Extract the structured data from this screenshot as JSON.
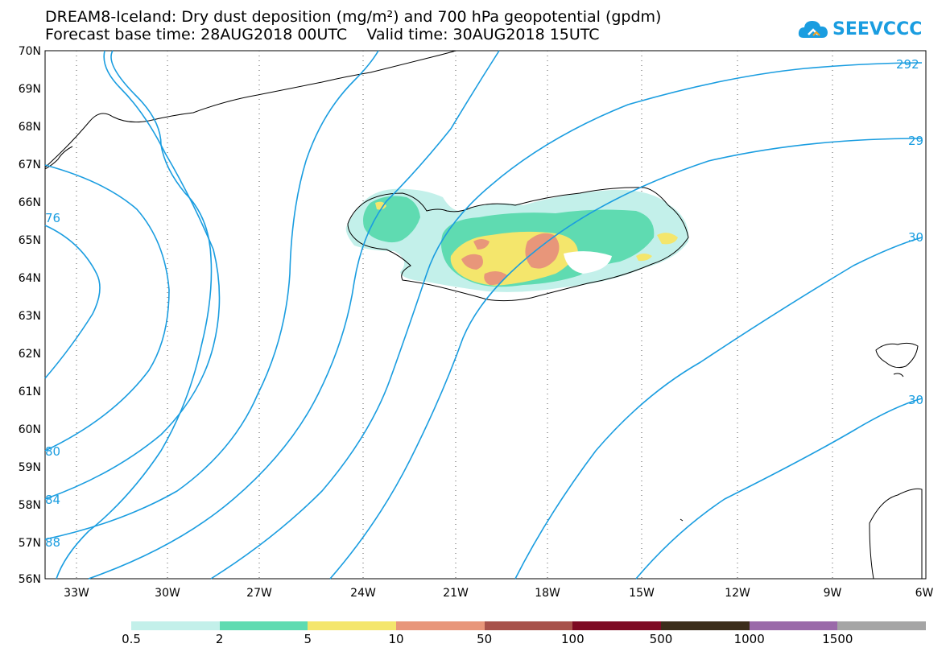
{
  "header": {
    "title_line1": "DREAM8-Iceland: Dry dust deposition (mg/m²) and 700 hPa geopotential (gpdm)",
    "title_line2": "Forecast base time: 28AUG2018 00UTC    Valid time: 30AUG2018 15UTC"
  },
  "logo": {
    "text": "SEEVCCC",
    "color": "#1a9de0"
  },
  "axes": {
    "lat_labels": [
      "70N",
      "69N",
      "68N",
      "67N",
      "66N",
      "65N",
      "64N",
      "63N",
      "62N",
      "61N",
      "60N",
      "59N",
      "58N",
      "57N",
      "56N"
    ],
    "lon_labels": [
      "33W",
      "30W",
      "27W",
      "24W",
      "21W",
      "18W",
      "15W",
      "12W",
      "9W",
      "6W"
    ]
  },
  "contour_labels": [
    "292",
    "29",
    "30",
    "30",
    "76",
    "80",
    "84",
    "88"
  ],
  "legend": {
    "labels": [
      "0.5",
      "2",
      "5",
      "10",
      "50",
      "100",
      "500",
      "1000",
      "1500"
    ],
    "colors": [
      "#c3f0ea",
      "#5fdbb1",
      "#f4e66c",
      "#e8967a",
      "#a8524b",
      "#7d0a23",
      "#3b2d1a",
      "#9a6aa9",
      "#a5a5a5"
    ]
  },
  "colors": {
    "contour": "#1a9de0",
    "coast": "#000000"
  }
}
